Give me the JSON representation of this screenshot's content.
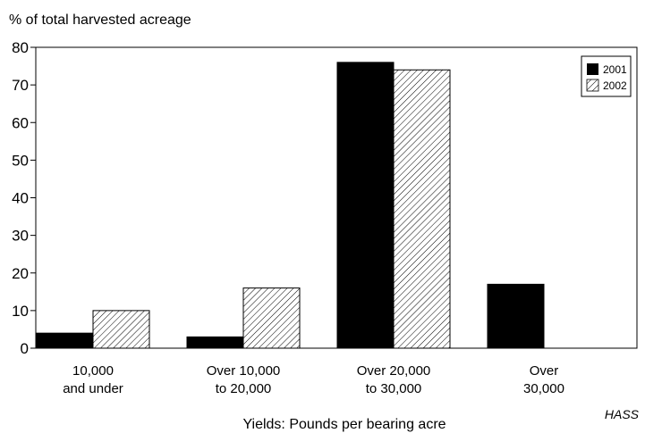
{
  "chart_data": {
    "type": "bar",
    "ylabel": "% of total harvested acreage",
    "xlabel": "Yields: Pounds per bearing acre",
    "source": "HASS",
    "ylim": [
      0,
      80
    ],
    "yticks": [
      "0",
      "10",
      "20",
      "30",
      "40",
      "50",
      "60",
      "70",
      "80"
    ],
    "categories": [
      [
        "10,000",
        "and under"
      ],
      [
        "Over 10,000",
        "to 20,000"
      ],
      [
        "Over 20,000",
        "to 30,000"
      ],
      [
        "Over",
        "30,000"
      ]
    ],
    "series": [
      {
        "name": "2001",
        "values": [
          4,
          3,
          76,
          17
        ],
        "fill": "solid",
        "color": "#000000"
      },
      {
        "name": "2002",
        "values": [
          10,
          16,
          74,
          null
        ],
        "fill": "hatched",
        "color": "#000000"
      }
    ],
    "legend_position": "top-right",
    "grid": false
  }
}
